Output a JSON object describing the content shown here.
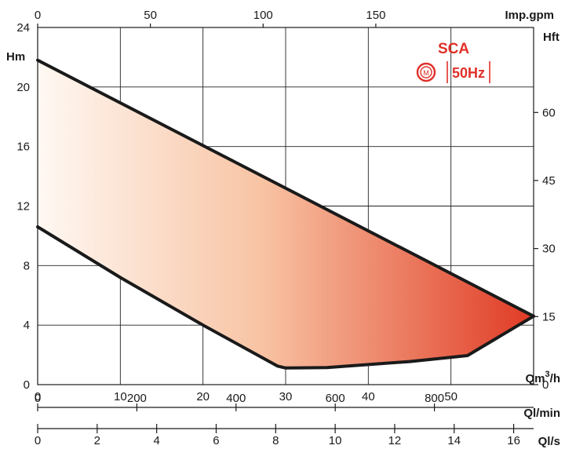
{
  "chart_data": {
    "type": "area",
    "title": "",
    "brand": {
      "model": "SCA",
      "frequency": "50Hz",
      "motor_symbol": "M",
      "color": "#e03028"
    },
    "axes": {
      "x_primary": {
        "unit": "Qm3/h",
        "unit_main": "Qm",
        "unit_sup": "3",
        "unit_tail": "/h",
        "range": [
          0,
          60
        ],
        "ticks": [
          0,
          10,
          20,
          30,
          40,
          50
        ]
      },
      "x_lmin": {
        "unit": "Ql/min",
        "range": [
          0,
          1000
        ],
        "ticks": [
          0,
          200,
          400,
          600,
          800
        ]
      },
      "x_ls": {
        "unit": "Ql/s",
        "range": [
          0,
          16.67
        ],
        "ticks": [
          0,
          2,
          4,
          6,
          8,
          10,
          12,
          14,
          16
        ]
      },
      "x_top": {
        "unit": "Imp.gpm",
        "range": [
          0,
          220
        ],
        "ticks": [
          0,
          50,
          100,
          150
        ]
      },
      "y_left": {
        "unit": "Hm",
        "range": [
          0,
          24
        ],
        "ticks": [
          0,
          4,
          8,
          12,
          16,
          20,
          24
        ]
      },
      "y_right": {
        "unit": "Hft",
        "range": [
          0,
          78.74
        ],
        "ticks": [
          0,
          15,
          30,
          45,
          60
        ]
      }
    },
    "grid": true,
    "series": [
      {
        "name": "",
        "boundary": "upper",
        "x": [
          0,
          60
        ],
        "y": [
          21.8,
          4.6
        ]
      },
      {
        "name": "",
        "boundary": "lower",
        "x": [
          0,
          10,
          20,
          29,
          30,
          35,
          45,
          52,
          60
        ],
        "y": [
          10.6,
          7.2,
          4.0,
          1.25,
          1.12,
          1.15,
          1.55,
          1.95,
          4.6
        ]
      }
    ],
    "fill": {
      "gradient_from": "#fff8f3",
      "gradient_to": "#e03a24"
    }
  }
}
